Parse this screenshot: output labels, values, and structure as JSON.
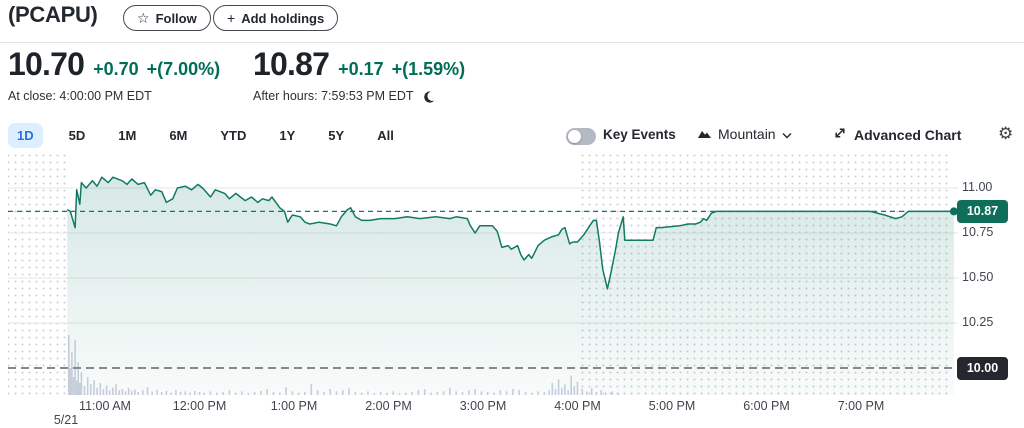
{
  "header": {
    "ticker": "(PCAPU)",
    "follow_label": "Follow",
    "add_holdings_label": "Add holdings"
  },
  "icons": {
    "star": "☆",
    "plus": "+",
    "gear": "⚙"
  },
  "quote": {
    "close_price": "10.70",
    "close_change": "+0.70",
    "close_change_pct": "+(7.00%)",
    "close_time": "At close: 4:00:00 PM EDT",
    "after_price": "10.87",
    "after_change": "+0.17",
    "after_change_pct": "+(1.59%)",
    "after_time": "After hours: 7:59:53 PM EDT"
  },
  "toolbar": {
    "ranges": [
      {
        "label": "1D",
        "selected": true
      },
      {
        "label": "5D",
        "selected": false
      },
      {
        "label": "1M",
        "selected": false
      },
      {
        "label": "6M",
        "selected": false
      },
      {
        "label": "YTD",
        "selected": false
      },
      {
        "label": "1Y",
        "selected": false
      },
      {
        "label": "5Y",
        "selected": false
      },
      {
        "label": "All",
        "selected": false
      }
    ],
    "key_events_label": "Key Events",
    "key_events_enabled": false,
    "chart_type_label": "Mountain",
    "advanced_chart_label": "Advanced Chart"
  },
  "colors": {
    "positive_green": "#006d58",
    "line_teal": "#117a63",
    "current_badge_bg": "#0f6e5a",
    "prev_close_badge_bg": "#24282e",
    "selected_range_text": "#2f6fdd",
    "selected_range_bg": "#ddeffe",
    "volume_bar": "#c5cdda",
    "gridline": "#e3e6ea"
  },
  "chart_data": {
    "type": "area",
    "title": "PCAPU intraday price, 1D range, 5/21",
    "legend": "none",
    "grid": true,
    "current_price": 10.87,
    "current_price_label": "10.87",
    "previous_close": 10.0,
    "previous_close_label": "10.00",
    "session_start_minutes": 636,
    "regular_end_minutes": 960,
    "x_axis": {
      "labels": [
        "11:00 AM",
        "12:00 PM",
        "1:00 PM",
        "2:00 PM",
        "3:00 PM",
        "4:00 PM",
        "5:00 PM",
        "6:00 PM",
        "7:00 PM"
      ],
      "date_label": "5/21"
    },
    "y_axis": {
      "ticks": [
        "11.00",
        "10.75",
        "10.50",
        "10.25"
      ],
      "tick_values": [
        11.0,
        10.75,
        10.5,
        10.25
      ],
      "range": [
        9.9,
        11.15
      ]
    },
    "price_points": [
      [
        636,
        10.88
      ],
      [
        638,
        10.87
      ],
      [
        640,
        10.81
      ],
      [
        641,
        10.78
      ],
      [
        642,
        10.99
      ],
      [
        644,
        10.91
      ],
      [
        645,
        11.03
      ],
      [
        648,
        11.0
      ],
      [
        652,
        11.04
      ],
      [
        655,
        11.01
      ],
      [
        658,
        11.06
      ],
      [
        662,
        11.03
      ],
      [
        665,
        11.06
      ],
      [
        671,
        11.04
      ],
      [
        674,
        11.02
      ],
      [
        677,
        11.05
      ],
      [
        681,
        11.02
      ],
      [
        685,
        11.03
      ],
      [
        689,
        10.96
      ],
      [
        692,
        10.99
      ],
      [
        696,
        10.98
      ],
      [
        699,
        10.92
      ],
      [
        703,
        10.94
      ],
      [
        706,
        11.0
      ],
      [
        711,
        11.01
      ],
      [
        715,
        10.99
      ],
      [
        719,
        11.02
      ],
      [
        722,
        11.0
      ],
      [
        727,
        10.95
      ],
      [
        730,
        10.99
      ],
      [
        736,
        10.97
      ],
      [
        739,
        10.94
      ],
      [
        743,
        10.97
      ],
      [
        749,
        10.93
      ],
      [
        753,
        10.95
      ],
      [
        757,
        10.92
      ],
      [
        760,
        10.94
      ],
      [
        764,
        10.93
      ],
      [
        766,
        10.95
      ],
      [
        771,
        10.89
      ],
      [
        774,
        10.87
      ],
      [
        776,
        10.81
      ],
      [
        779,
        10.85
      ],
      [
        784,
        10.84
      ],
      [
        787,
        10.81
      ],
      [
        790,
        10.8
      ],
      [
        796,
        10.81
      ],
      [
        803,
        10.8
      ],
      [
        807,
        10.79
      ],
      [
        810,
        10.84
      ],
      [
        814,
        10.88
      ],
      [
        816,
        10.89
      ],
      [
        819,
        10.84
      ],
      [
        823,
        10.82
      ],
      [
        828,
        10.82
      ],
      [
        835,
        10.83
      ],
      [
        844,
        10.83
      ],
      [
        852,
        10.84
      ],
      [
        860,
        10.83
      ],
      [
        870,
        10.84
      ],
      [
        879,
        10.83
      ],
      [
        883,
        10.84
      ],
      [
        890,
        10.83
      ],
      [
        892,
        10.79
      ],
      [
        895,
        10.75
      ],
      [
        898,
        10.79
      ],
      [
        906,
        10.79
      ],
      [
        909,
        10.76
      ],
      [
        912,
        10.67
      ],
      [
        916,
        10.68
      ],
      [
        918,
        10.66
      ],
      [
        922,
        10.68
      ],
      [
        924,
        10.63
      ],
      [
        926,
        10.6
      ],
      [
        929,
        10.63
      ],
      [
        931,
        10.61
      ],
      [
        935,
        10.68
      ],
      [
        939,
        10.71
      ],
      [
        944,
        10.73
      ],
      [
        948,
        10.74
      ],
      [
        950,
        10.77
      ],
      [
        952,
        10.78
      ],
      [
        955,
        10.69
      ],
      [
        957,
        10.7
      ],
      [
        960,
        10.7
      ],
      [
        964,
        10.74
      ],
      [
        970,
        10.82
      ],
      [
        972,
        10.82
      ],
      [
        974,
        10.7
      ],
      [
        976,
        10.55
      ],
      [
        979,
        10.44
      ],
      [
        981,
        10.52
      ],
      [
        984,
        10.65
      ],
      [
        986,
        10.75
      ],
      [
        989,
        10.84
      ],
      [
        990,
        10.71
      ],
      [
        1008,
        10.71
      ],
      [
        1010,
        10.78
      ],
      [
        1013,
        10.78
      ],
      [
        1025,
        10.79
      ],
      [
        1030,
        10.8
      ],
      [
        1035,
        10.8
      ],
      [
        1038,
        10.81
      ],
      [
        1040,
        10.83
      ],
      [
        1042,
        10.82
      ],
      [
        1045,
        10.86
      ],
      [
        1048,
        10.87
      ],
      [
        1146,
        10.87
      ],
      [
        1155,
        10.85
      ],
      [
        1162,
        10.83
      ],
      [
        1166,
        10.84
      ],
      [
        1170,
        10.87
      ],
      [
        1199,
        10.87
      ]
    ],
    "volume_bars": [
      [
        637,
        100
      ],
      [
        638,
        45
      ],
      [
        639,
        72
      ],
      [
        640,
        30
      ],
      [
        641,
        92
      ],
      [
        642,
        24
      ],
      [
        643,
        55
      ],
      [
        644,
        20
      ],
      [
        645,
        38
      ],
      [
        647,
        15
      ],
      [
        649,
        30
      ],
      [
        651,
        18
      ],
      [
        653,
        25
      ],
      [
        655,
        12
      ],
      [
        657,
        20
      ],
      [
        659,
        10
      ],
      [
        661,
        16
      ],
      [
        663,
        8
      ],
      [
        665,
        12
      ],
      [
        667,
        18
      ],
      [
        669,
        8
      ],
      [
        671,
        10
      ],
      [
        673,
        6
      ],
      [
        675,
        12
      ],
      [
        677,
        7
      ],
      [
        679,
        9
      ],
      [
        681,
        5
      ],
      [
        684,
        8
      ],
      [
        687,
        13
      ],
      [
        690,
        6
      ],
      [
        693,
        9
      ],
      [
        696,
        5
      ],
      [
        699,
        7
      ],
      [
        702,
        4
      ],
      [
        705,
        8
      ],
      [
        708,
        5
      ],
      [
        711,
        6
      ],
      [
        714,
        4
      ],
      [
        717,
        7
      ],
      [
        720,
        5
      ],
      [
        723,
        4
      ],
      [
        727,
        6
      ],
      [
        731,
        4
      ],
      [
        735,
        5
      ],
      [
        739,
        8
      ],
      [
        743,
        4
      ],
      [
        747,
        6
      ],
      [
        751,
        3
      ],
      [
        755,
        5
      ],
      [
        759,
        7
      ],
      [
        763,
        10
      ],
      [
        767,
        5
      ],
      [
        771,
        4
      ],
      [
        775,
        13
      ],
      [
        779,
        6
      ],
      [
        783,
        4
      ],
      [
        787,
        5
      ],
      [
        791,
        18
      ],
      [
        795,
        8
      ],
      [
        799,
        5
      ],
      [
        803,
        10
      ],
      [
        807,
        6
      ],
      [
        811,
        8
      ],
      [
        815,
        11
      ],
      [
        819,
        5
      ],
      [
        823,
        4
      ],
      [
        827,
        6
      ],
      [
        831,
        3
      ],
      [
        835,
        5
      ],
      [
        839,
        4
      ],
      [
        843,
        6
      ],
      [
        847,
        3
      ],
      [
        851,
        4
      ],
      [
        855,
        5
      ],
      [
        859,
        8
      ],
      [
        863,
        10
      ],
      [
        867,
        4
      ],
      [
        871,
        5
      ],
      [
        875,
        6
      ],
      [
        879,
        12
      ],
      [
        883,
        6
      ],
      [
        887,
        5
      ],
      [
        891,
        8
      ],
      [
        895,
        10
      ],
      [
        899,
        6
      ],
      [
        903,
        5
      ],
      [
        907,
        4
      ],
      [
        911,
        8
      ],
      [
        915,
        6
      ],
      [
        919,
        10
      ],
      [
        923,
        8
      ],
      [
        927,
        5
      ],
      [
        931,
        4
      ],
      [
        935,
        6
      ],
      [
        939,
        5
      ],
      [
        942,
        8
      ],
      [
        944,
        20
      ],
      [
        946,
        10
      ],
      [
        948,
        26
      ],
      [
        950,
        12
      ],
      [
        952,
        18
      ],
      [
        954,
        8
      ],
      [
        956,
        32
      ],
      [
        958,
        15
      ],
      [
        960,
        22
      ],
      [
        963,
        10
      ],
      [
        966,
        6
      ],
      [
        969,
        12
      ],
      [
        972,
        5
      ],
      [
        975,
        8
      ],
      [
        978,
        4
      ],
      [
        982,
        6
      ],
      [
        986,
        3
      ]
    ]
  }
}
